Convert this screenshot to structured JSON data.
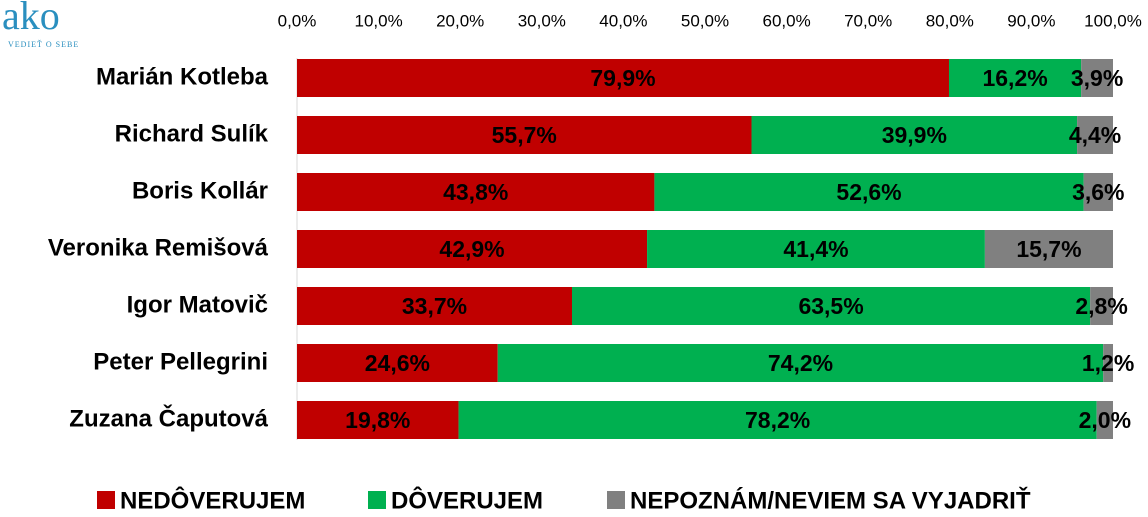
{
  "logo": {
    "name": "ako",
    "tagline": "VEDIEŤ O SEBE"
  },
  "chart_data": {
    "type": "stacked-barh",
    "categories": [
      "Marián Kotleba",
      "Richard Sulík",
      "Boris Kollár",
      "Veronika Remišová",
      "Igor Matovič",
      "Peter Pellegrini",
      "Zuzana Čaputová"
    ],
    "series": [
      {
        "name": "NEDÔVERUJEM",
        "color": "#c00000",
        "values": [
          79.9,
          55.7,
          43.8,
          42.9,
          33.7,
          24.6,
          19.8
        ],
        "value_labels": [
          "79,9%",
          "55,7%",
          "43,8%",
          "42,9%",
          "33,7%",
          "24,6%",
          "19,8%"
        ]
      },
      {
        "name": "DÔVERUJEM",
        "color": "#00b050",
        "values": [
          16.2,
          39.9,
          52.6,
          41.4,
          63.5,
          74.2,
          78.2
        ],
        "value_labels": [
          "16,2%",
          "39,9%",
          "52,6%",
          "41,4%",
          "63,5%",
          "74,2%",
          "78,2%"
        ]
      },
      {
        "name": "NEPOZNÁM/NEVIEM SA VYJADRIŤ",
        "color": "#808080",
        "values": [
          3.9,
          4.4,
          3.6,
          15.7,
          2.8,
          1.2,
          2.0
        ],
        "value_labels": [
          "3,9%",
          "4,4%",
          "3,6%",
          "15,7%",
          "2,8%",
          "1,2%",
          "2,0%"
        ]
      }
    ],
    "xlim": [
      0,
      100
    ],
    "xticks": [
      {
        "value": 0,
        "label": "0,0%"
      },
      {
        "value": 10,
        "label": "10,0%"
      },
      {
        "value": 20,
        "label": "20,0%"
      },
      {
        "value": 30,
        "label": "30,0%"
      },
      {
        "value": 40,
        "label": "40,0%"
      },
      {
        "value": 50,
        "label": "50,0%"
      },
      {
        "value": 60,
        "label": "60,0%"
      },
      {
        "value": 70,
        "label": "70,0%"
      },
      {
        "value": 80,
        "label": "80,0%"
      },
      {
        "value": 90,
        "label": "90,0%"
      },
      {
        "value": 100,
        "label": "100,0%"
      }
    ],
    "legend": "bottom"
  }
}
